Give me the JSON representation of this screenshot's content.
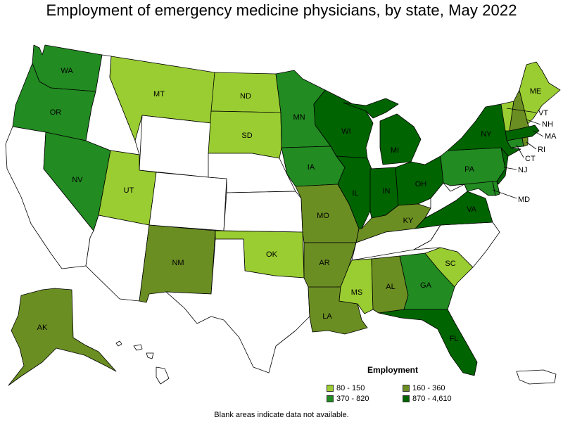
{
  "title": "Employment of emergency medicine physicians, by state, May 2022",
  "legend": {
    "title": "Employment",
    "bins": [
      {
        "label": "80 - 150",
        "color": "#9acd32"
      },
      {
        "label": "160 - 360",
        "color": "#6b8e23"
      },
      {
        "label": "370 - 820",
        "color": "#228b22"
      },
      {
        "label": "870 - 4,610",
        "color": "#006400"
      }
    ]
  },
  "footnote": "Blank areas indicate data not available.",
  "colors": {
    "no_data": "#ffffff",
    "border": "#000000"
  },
  "states": {
    "WA": {
      "label": "WA",
      "bin": 2
    },
    "OR": {
      "label": "OR",
      "bin": 2
    },
    "CA": {
      "label": "",
      "bin": -1
    },
    "NV": {
      "label": "NV",
      "bin": 2
    },
    "ID": {
      "label": "",
      "bin": -1
    },
    "MT": {
      "label": "MT",
      "bin": 0
    },
    "WY": {
      "label": "",
      "bin": -1
    },
    "UT": {
      "label": "UT",
      "bin": 0
    },
    "AZ": {
      "label": "",
      "bin": -1
    },
    "CO": {
      "label": "",
      "bin": -1
    },
    "NM": {
      "label": "NM",
      "bin": 1
    },
    "ND": {
      "label": "ND",
      "bin": 0
    },
    "SD": {
      "label": "SD",
      "bin": 0
    },
    "NE": {
      "label": "",
      "bin": -1
    },
    "KS": {
      "label": "",
      "bin": -1
    },
    "OK": {
      "label": "OK",
      "bin": 0
    },
    "TX": {
      "label": "",
      "bin": -1
    },
    "MN": {
      "label": "MN",
      "bin": 2
    },
    "IA": {
      "label": "IA",
      "bin": 2
    },
    "MO": {
      "label": "MO",
      "bin": 1
    },
    "AR": {
      "label": "AR",
      "bin": 1
    },
    "LA": {
      "label": "LA",
      "bin": 1
    },
    "WI": {
      "label": "WI",
      "bin": 3
    },
    "IL": {
      "label": "IL",
      "bin": 3
    },
    "MI": {
      "label": "MI",
      "bin": 3
    },
    "IN": {
      "label": "IN",
      "bin": 3
    },
    "OH": {
      "label": "OH",
      "bin": 3
    },
    "KY": {
      "label": "KY",
      "bin": 1
    },
    "TN": {
      "label": "",
      "bin": -1
    },
    "MS": {
      "label": "MS",
      "bin": 0
    },
    "AL": {
      "label": "AL",
      "bin": 1
    },
    "GA": {
      "label": "GA",
      "bin": 2
    },
    "FL": {
      "label": "FL",
      "bin": 3
    },
    "SC": {
      "label": "SC",
      "bin": 0
    },
    "NC": {
      "label": "",
      "bin": -1
    },
    "VA": {
      "label": "VA",
      "bin": 3
    },
    "WV": {
      "label": "",
      "bin": -1
    },
    "PA": {
      "label": "PA",
      "bin": 2
    },
    "NY": {
      "label": "NY",
      "bin": 3
    },
    "VT": {
      "label": "VT",
      "bin": 0
    },
    "NH": {
      "label": "NH",
      "bin": 1
    },
    "ME": {
      "label": "ME",
      "bin": 0
    },
    "MA": {
      "label": "MA",
      "bin": 3
    },
    "RI": {
      "label": "RI",
      "bin": 1
    },
    "CT": {
      "label": "CT",
      "bin": 2
    },
    "NJ": {
      "label": "NJ",
      "bin": 3
    },
    "DE": {
      "label": "",
      "bin": 2
    },
    "MD": {
      "label": "MD",
      "bin": 2
    },
    "AK": {
      "label": "AK",
      "bin": 1
    },
    "HI": {
      "label": "",
      "bin": -1
    },
    "PR": {
      "label": "",
      "bin": -1
    }
  }
}
